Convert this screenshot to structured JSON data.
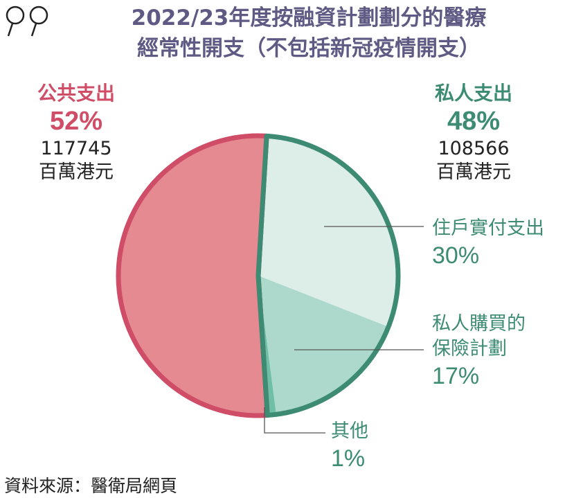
{
  "title": {
    "line1": "2022/23年度按融資計劃劃分的醫療",
    "line2": "經常性開支（不包括新冠疫情開支）"
  },
  "groups": {
    "public": {
      "name": "公共支出",
      "percent": "52%",
      "amount": "117745",
      "unit": "百萬港元"
    },
    "private": {
      "name": "私人支出",
      "percent": "48%",
      "amount": "108566",
      "unit": "百萬港元"
    }
  },
  "callouts": {
    "out_of_pocket": {
      "label": "住戶實付支出",
      "value": "30%"
    },
    "insurance": {
      "label": "私人購買的保險計劃",
      "value": "17%"
    },
    "other": {
      "label": "其他",
      "value": "1%"
    }
  },
  "source": "資料來源：醫衛局網頁",
  "chart_data": {
    "type": "pie",
    "title": "2022/23年度按融資計劃劃分的醫療經常性開支（不包括新冠疫情開支）",
    "unit": "百萬港元",
    "slices": [
      {
        "label": "公共支出",
        "percent": 52,
        "value": 117745,
        "color": "#e58a90",
        "border": "#cf4d67"
      },
      {
        "label": "住戶實付支出",
        "group": "私人支出",
        "percent": 30,
        "color": "#ddeee8",
        "border": "#3d8b73"
      },
      {
        "label": "私人購買的保險計劃",
        "group": "私人支出",
        "percent": 17,
        "color": "#acd9cb",
        "border": "#3d8b73"
      },
      {
        "label": "其他",
        "group": "私人支出",
        "percent": 1,
        "color": "#6fbea6",
        "border": "#3d8b73"
      }
    ],
    "groups": [
      {
        "label": "公共支出",
        "percent": 52,
        "value": 117745
      },
      {
        "label": "私人支出",
        "percent": 48,
        "value": 108566
      }
    ]
  }
}
